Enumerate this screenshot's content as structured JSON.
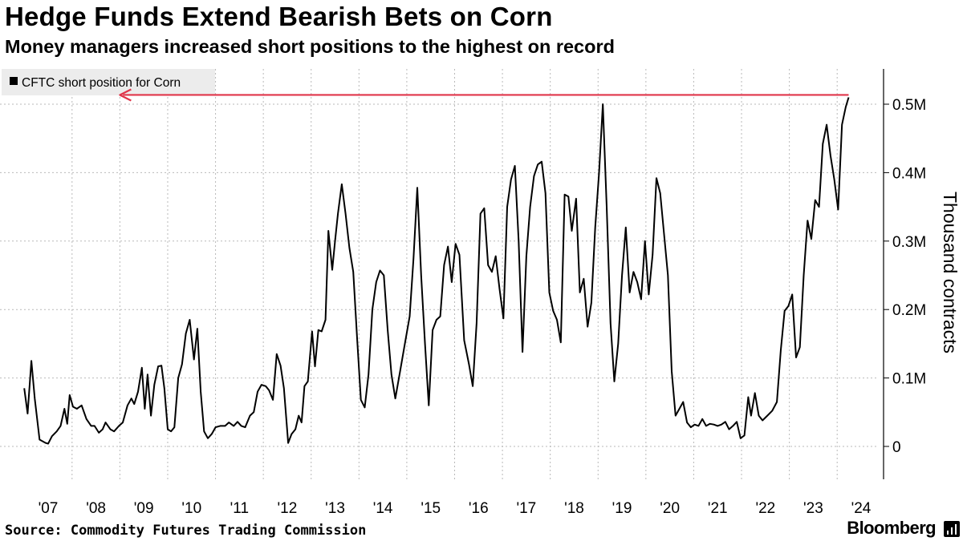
{
  "chart_data": {
    "type": "line",
    "title": "Hedge Funds Extend Bearish Bets on Corn",
    "subtitle": "Money managers increased short positions to the highest on record",
    "ylabel": "Thousand contracts",
    "xlabel": "",
    "ylim": [
      -0.04,
      0.55
    ],
    "xlim": [
      2006.5,
      2024.6
    ],
    "yticks": [
      {
        "value": 0,
        "label": "0"
      },
      {
        "value": 0.1,
        "label": "0.1M"
      },
      {
        "value": 0.2,
        "label": "0.2M"
      },
      {
        "value": 0.3,
        "label": "0.3M"
      },
      {
        "value": 0.4,
        "label": "0.4M"
      },
      {
        "value": 0.5,
        "label": "0.5M"
      }
    ],
    "xticks": [
      {
        "value": 2007,
        "label": "'07"
      },
      {
        "value": 2008,
        "label": "'08"
      },
      {
        "value": 2009,
        "label": "'09"
      },
      {
        "value": 2010,
        "label": "'10"
      },
      {
        "value": 2011,
        "label": "'11"
      },
      {
        "value": 2012,
        "label": "'12"
      },
      {
        "value": 2013,
        "label": "'13"
      },
      {
        "value": 2014,
        "label": "'14"
      },
      {
        "value": 2015,
        "label": "'15"
      },
      {
        "value": 2016,
        "label": "'16"
      },
      {
        "value": 2017,
        "label": "'17"
      },
      {
        "value": 2018,
        "label": "'18"
      },
      {
        "value": 2019,
        "label": "'19"
      },
      {
        "value": 2020,
        "label": "'20"
      },
      {
        "value": 2021,
        "label": "'21"
      },
      {
        "value": 2022,
        "label": "'22"
      },
      {
        "value": 2023,
        "label": "'23"
      },
      {
        "value": 2024,
        "label": "'24"
      }
    ],
    "grid": true,
    "legend": "top-left",
    "series": [
      {
        "name": "CFTC short position for Corn",
        "color": "#000000",
        "points": [
          [
            2006.5,
            0.085
          ],
          [
            2006.57,
            0.048
          ],
          [
            2006.65,
            0.125
          ],
          [
            2006.72,
            0.07
          ],
          [
            2006.82,
            0.01
          ],
          [
            2006.95,
            0.005
          ],
          [
            2007.0,
            0.004
          ],
          [
            2007.08,
            0.015
          ],
          [
            2007.18,
            0.022
          ],
          [
            2007.26,
            0.03
          ],
          [
            2007.34,
            0.055
          ],
          [
            2007.4,
            0.033
          ],
          [
            2007.45,
            0.075
          ],
          [
            2007.52,
            0.058
          ],
          [
            2007.6,
            0.055
          ],
          [
            2007.7,
            0.06
          ],
          [
            2007.8,
            0.04
          ],
          [
            2007.9,
            0.03
          ],
          [
            2007.97,
            0.03
          ],
          [
            2008.06,
            0.02
          ],
          [
            2008.14,
            0.025
          ],
          [
            2008.2,
            0.035
          ],
          [
            2008.3,
            0.025
          ],
          [
            2008.38,
            0.022
          ],
          [
            2008.48,
            0.03
          ],
          [
            2008.56,
            0.035
          ],
          [
            2008.66,
            0.06
          ],
          [
            2008.74,
            0.07
          ],
          [
            2008.8,
            0.062
          ],
          [
            2008.88,
            0.08
          ],
          [
            2008.96,
            0.115
          ],
          [
            2009.02,
            0.055
          ],
          [
            2009.08,
            0.105
          ],
          [
            2009.15,
            0.045
          ],
          [
            2009.22,
            0.09
          ],
          [
            2009.3,
            0.117
          ],
          [
            2009.37,
            0.118
          ],
          [
            2009.43,
            0.085
          ],
          [
            2009.5,
            0.025
          ],
          [
            2009.57,
            0.022
          ],
          [
            2009.64,
            0.028
          ],
          [
            2009.72,
            0.1
          ],
          [
            2009.8,
            0.12
          ],
          [
            2009.88,
            0.165
          ],
          [
            2009.96,
            0.185
          ],
          [
            2010.05,
            0.127
          ],
          [
            2010.12,
            0.172
          ],
          [
            2010.19,
            0.08
          ],
          [
            2010.26,
            0.022
          ],
          [
            2010.34,
            0.012
          ],
          [
            2010.42,
            0.018
          ],
          [
            2010.5,
            0.028
          ],
          [
            2010.6,
            0.03
          ],
          [
            2010.7,
            0.03
          ],
          [
            2010.78,
            0.035
          ],
          [
            2010.88,
            0.03
          ],
          [
            2010.96,
            0.036
          ],
          [
            2011.04,
            0.03
          ],
          [
            2011.12,
            0.028
          ],
          [
            2011.22,
            0.045
          ],
          [
            2011.3,
            0.05
          ],
          [
            2011.38,
            0.08
          ],
          [
            2011.46,
            0.09
          ],
          [
            2011.55,
            0.088
          ],
          [
            2011.62,
            0.082
          ],
          [
            2011.7,
            0.068
          ],
          [
            2011.78,
            0.135
          ],
          [
            2011.86,
            0.118
          ],
          [
            2011.93,
            0.085
          ],
          [
            2012.02,
            0.005
          ],
          [
            2012.09,
            0.018
          ],
          [
            2012.17,
            0.025
          ],
          [
            2012.24,
            0.045
          ],
          [
            2012.3,
            0.035
          ],
          [
            2012.36,
            0.088
          ],
          [
            2012.43,
            0.095
          ],
          [
            2012.52,
            0.168
          ],
          [
            2012.58,
            0.117
          ],
          [
            2012.65,
            0.17
          ],
          [
            2012.72,
            0.168
          ],
          [
            2012.8,
            0.185
          ],
          [
            2012.86,
            0.315
          ],
          [
            2012.94,
            0.258
          ],
          [
            2013.0,
            0.3
          ],
          [
            2013.06,
            0.34
          ],
          [
            2013.14,
            0.383
          ],
          [
            2013.22,
            0.34
          ],
          [
            2013.3,
            0.29
          ],
          [
            2013.38,
            0.255
          ],
          [
            2013.46,
            0.16
          ],
          [
            2013.54,
            0.068
          ],
          [
            2013.62,
            0.057
          ],
          [
            2013.7,
            0.105
          ],
          [
            2013.78,
            0.2
          ],
          [
            2013.86,
            0.24
          ],
          [
            2013.94,
            0.257
          ],
          [
            2014.02,
            0.25
          ],
          [
            2014.1,
            0.17
          ],
          [
            2014.18,
            0.105
          ],
          [
            2014.26,
            0.07
          ],
          [
            2014.36,
            0.11
          ],
          [
            2014.46,
            0.15
          ],
          [
            2014.56,
            0.19
          ],
          [
            2014.64,
            0.275
          ],
          [
            2014.72,
            0.378
          ],
          [
            2014.8,
            0.25
          ],
          [
            2014.88,
            0.15
          ],
          [
            2014.96,
            0.06
          ],
          [
            2015.04,
            0.17
          ],
          [
            2015.12,
            0.185
          ],
          [
            2015.2,
            0.19
          ],
          [
            2015.28,
            0.265
          ],
          [
            2015.36,
            0.292
          ],
          [
            2015.44,
            0.24
          ],
          [
            2015.52,
            0.296
          ],
          [
            2015.6,
            0.28
          ],
          [
            2015.7,
            0.155
          ],
          [
            2015.8,
            0.12
          ],
          [
            2015.88,
            0.088
          ],
          [
            2015.96,
            0.18
          ],
          [
            2016.04,
            0.34
          ],
          [
            2016.12,
            0.348
          ],
          [
            2016.2,
            0.265
          ],
          [
            2016.28,
            0.255
          ],
          [
            2016.36,
            0.278
          ],
          [
            2016.44,
            0.23
          ],
          [
            2016.52,
            0.187
          ],
          [
            2016.6,
            0.35
          ],
          [
            2016.68,
            0.39
          ],
          [
            2016.76,
            0.41
          ],
          [
            2016.84,
            0.3
          ],
          [
            2016.92,
            0.138
          ],
          [
            2017.0,
            0.278
          ],
          [
            2017.08,
            0.35
          ],
          [
            2017.16,
            0.395
          ],
          [
            2017.24,
            0.412
          ],
          [
            2017.32,
            0.416
          ],
          [
            2017.4,
            0.37
          ],
          [
            2017.48,
            0.225
          ],
          [
            2017.56,
            0.198
          ],
          [
            2017.64,
            0.185
          ],
          [
            2017.72,
            0.152
          ],
          [
            2017.8,
            0.368
          ],
          [
            2017.88,
            0.365
          ],
          [
            2017.95,
            0.315
          ],
          [
            2018.04,
            0.362
          ],
          [
            2018.12,
            0.225
          ],
          [
            2018.2,
            0.245
          ],
          [
            2018.28,
            0.175
          ],
          [
            2018.36,
            0.21
          ],
          [
            2018.44,
            0.32
          ],
          [
            2018.52,
            0.4
          ],
          [
            2018.6,
            0.5
          ],
          [
            2018.68,
            0.35
          ],
          [
            2018.76,
            0.18
          ],
          [
            2018.84,
            0.095
          ],
          [
            2018.92,
            0.15
          ],
          [
            2019.0,
            0.25
          ],
          [
            2019.08,
            0.32
          ],
          [
            2019.16,
            0.225
          ],
          [
            2019.24,
            0.255
          ],
          [
            2019.32,
            0.24
          ],
          [
            2019.4,
            0.215
          ],
          [
            2019.48,
            0.3
          ],
          [
            2019.56,
            0.222
          ],
          [
            2019.64,
            0.28
          ],
          [
            2019.72,
            0.392
          ],
          [
            2019.8,
            0.37
          ],
          [
            2019.88,
            0.31
          ],
          [
            2019.96,
            0.25
          ],
          [
            2020.04,
            0.11
          ],
          [
            2020.12,
            0.045
          ],
          [
            2020.2,
            0.055
          ],
          [
            2020.28,
            0.065
          ],
          [
            2020.36,
            0.035
          ],
          [
            2020.44,
            0.028
          ],
          [
            2020.52,
            0.032
          ],
          [
            2020.6,
            0.03
          ],
          [
            2020.68,
            0.04
          ],
          [
            2020.76,
            0.03
          ],
          [
            2020.84,
            0.033
          ],
          [
            2020.92,
            0.032
          ],
          [
            2021.0,
            0.03
          ],
          [
            2021.08,
            0.032
          ],
          [
            2021.16,
            0.036
          ],
          [
            2021.24,
            0.025
          ],
          [
            2021.32,
            0.03
          ],
          [
            2021.4,
            0.036
          ],
          [
            2021.48,
            0.012
          ],
          [
            2021.56,
            0.016
          ],
          [
            2021.64,
            0.072
          ],
          [
            2021.7,
            0.045
          ],
          [
            2021.78,
            0.078
          ],
          [
            2021.86,
            0.045
          ],
          [
            2021.94,
            0.038
          ],
          [
            2022.04,
            0.045
          ],
          [
            2022.14,
            0.052
          ],
          [
            2022.24,
            0.065
          ],
          [
            2022.32,
            0.14
          ],
          [
            2022.4,
            0.198
          ],
          [
            2022.48,
            0.205
          ],
          [
            2022.56,
            0.222
          ],
          [
            2022.64,
            0.13
          ],
          [
            2022.72,
            0.145
          ],
          [
            2022.8,
            0.25
          ],
          [
            2022.88,
            0.33
          ],
          [
            2022.96,
            0.303
          ],
          [
            2023.04,
            0.36
          ],
          [
            2023.12,
            0.35
          ],
          [
            2023.2,
            0.442
          ],
          [
            2023.28,
            0.47
          ],
          [
            2023.36,
            0.425
          ],
          [
            2023.44,
            0.39
          ],
          [
            2023.52,
            0.346
          ],
          [
            2023.6,
            0.47
          ],
          [
            2023.68,
            0.496
          ],
          [
            2023.74,
            0.51
          ]
        ]
      }
    ],
    "annotations": [
      {
        "type": "arrow",
        "from": [
          2023.74,
          0.51
        ],
        "to": [
          2008.5,
          0.51
        ],
        "color": "#e0354a"
      }
    ]
  },
  "footer": {
    "source": "Source: Commodity Futures Trading Commission",
    "brand": "Bloomberg"
  }
}
